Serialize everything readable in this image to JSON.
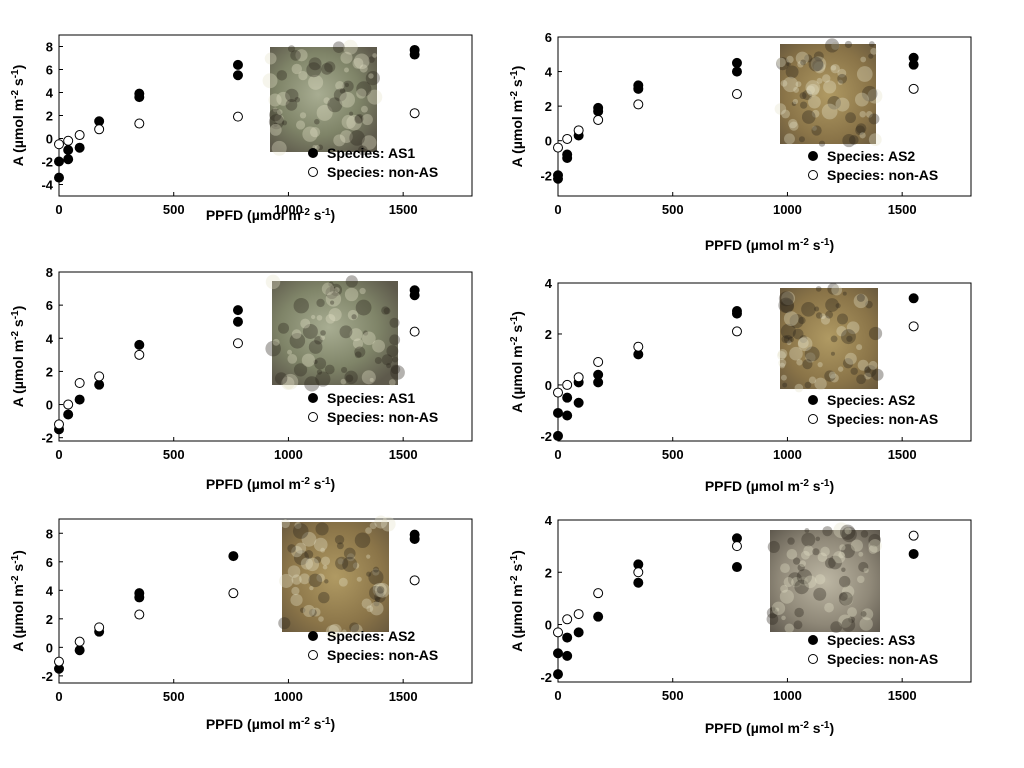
{
  "figure": {
    "xlabel": "PPFD (µmol m⁻² s⁻¹)",
    "ylabel": "A (µmol m⁻² s⁻¹)",
    "colors": {
      "filled": "#000000",
      "open_fill": "#ffffff",
      "open_stroke": "#000000"
    }
  },
  "chart_data": [
    {
      "type": "scatter",
      "xlabel": "PPFD (µmol m⁻² s⁻¹)",
      "ylabel": "A (µmol m⁻² s⁻¹)",
      "xlim": [
        0,
        1800
      ],
      "ylim": [
        -5,
        9
      ],
      "xticks": [
        0,
        500,
        1000,
        1500
      ],
      "yticks": [
        -4,
        -2,
        0,
        2,
        4,
        6,
        8
      ],
      "legend": "bottom-right",
      "image": "lichen-photo",
      "series": [
        {
          "name": "Species: AS1",
          "marker": "filled",
          "x": [
            0,
            0,
            40,
            40,
            90,
            175,
            350,
            350,
            780,
            780,
            1550,
            1550
          ],
          "y": [
            -3.4,
            -2.0,
            -1.8,
            -1.0,
            -0.8,
            1.5,
            3.6,
            3.9,
            5.5,
            6.4,
            7.3,
            7.7
          ]
        },
        {
          "name": "Species: non-AS",
          "marker": "open",
          "x": [
            0,
            40,
            90,
            175,
            350,
            780,
            1550
          ],
          "y": [
            -0.5,
            -0.2,
            0.3,
            0.8,
            1.3,
            1.9,
            2.2
          ]
        }
      ]
    },
    {
      "type": "scatter",
      "xlabel": "PPFD (µmol m⁻² s⁻¹)",
      "ylabel": "A (µmol m⁻² s⁻¹)",
      "xlim": [
        0,
        1800
      ],
      "ylim": [
        -3.2,
        6
      ],
      "xticks": [
        0,
        500,
        1000,
        1500
      ],
      "yticks": [
        -2,
        0,
        2,
        4,
        6
      ],
      "legend": "bottom-right",
      "image": "lichen-photo",
      "series": [
        {
          "name": "Species: AS2",
          "marker": "filled",
          "x": [
            0,
            0,
            40,
            40,
            90,
            175,
            175,
            350,
            350,
            780,
            780,
            1550,
            1550
          ],
          "y": [
            -2.2,
            -2.0,
            -1.0,
            -0.8,
            0.3,
            1.7,
            1.9,
            3.0,
            3.2,
            4.0,
            4.5,
            4.4,
            4.8
          ]
        },
        {
          "name": "Species: non-AS",
          "marker": "open",
          "x": [
            0,
            40,
            90,
            175,
            350,
            780,
            1550
          ],
          "y": [
            -0.4,
            0.1,
            0.6,
            1.2,
            2.1,
            2.7,
            3.0
          ]
        }
      ]
    },
    {
      "type": "scatter",
      "xlabel": "PPFD (µmol m⁻² s⁻¹)",
      "ylabel": "A (µmol m⁻² s⁻¹)",
      "xlim": [
        0,
        1800
      ],
      "ylim": [
        -2.2,
        8
      ],
      "xticks": [
        0,
        500,
        1000,
        1500
      ],
      "yticks": [
        -2,
        0,
        2,
        4,
        6,
        8
      ],
      "legend": "bottom-right",
      "image": "lichen-photo",
      "series": [
        {
          "name": "Species: AS1",
          "marker": "filled",
          "x": [
            0,
            40,
            90,
            175,
            350,
            780,
            780,
            1550,
            1550
          ],
          "y": [
            -1.5,
            -0.6,
            0.3,
            1.2,
            3.6,
            5.0,
            5.7,
            6.6,
            6.9
          ]
        },
        {
          "name": "Species: non-AS",
          "marker": "open",
          "x": [
            0,
            40,
            90,
            175,
            350,
            780,
            1550
          ],
          "y": [
            -1.2,
            0.0,
            1.3,
            1.7,
            3.0,
            3.7,
            4.4
          ]
        }
      ]
    },
    {
      "type": "scatter",
      "xlabel": "PPFD (µmol m⁻² s⁻¹)",
      "ylabel": "A (µmol m⁻² s⁻¹)",
      "xlim": [
        0,
        1800
      ],
      "ylim": [
        -2.2,
        4
      ],
      "xticks": [
        0,
        500,
        1000,
        1500
      ],
      "yticks": [
        -2,
        0,
        2,
        4
      ],
      "legend": "bottom-right",
      "image": "lichen-photo",
      "series": [
        {
          "name": "Species: AS2",
          "marker": "filled",
          "x": [
            0,
            0,
            40,
            40,
            90,
            90,
            175,
            175,
            350,
            780,
            780,
            1550
          ],
          "y": [
            -2.0,
            -1.1,
            -1.2,
            -0.5,
            -0.7,
            0.1,
            0.1,
            0.4,
            1.2,
            2.8,
            2.9,
            3.4
          ]
        },
        {
          "name": "Species: non-AS",
          "marker": "open",
          "x": [
            0,
            40,
            90,
            175,
            350,
            780,
            1550
          ],
          "y": [
            -0.3,
            0.0,
            0.3,
            0.9,
            1.5,
            2.1,
            2.3
          ]
        }
      ]
    },
    {
      "type": "scatter",
      "xlabel": "PPFD (µmol m⁻² s⁻¹)",
      "ylabel": "A (µmol m⁻² s⁻¹)",
      "xlim": [
        0,
        1800
      ],
      "ylim": [
        -2.5,
        9
      ],
      "xticks": [
        0,
        500,
        1000,
        1500
      ],
      "yticks": [
        -2,
        0,
        2,
        4,
        6,
        8
      ],
      "legend": "bottom-right",
      "image": "lichen-photo",
      "series": [
        {
          "name": "Species: AS2",
          "marker": "filled",
          "x": [
            0,
            90,
            175,
            350,
            350,
            760,
            1550,
            1550
          ],
          "y": [
            -1.5,
            -0.2,
            1.1,
            3.5,
            3.8,
            6.4,
            7.6,
            7.9
          ]
        },
        {
          "name": "Species: non-AS",
          "marker": "open",
          "x": [
            0,
            90,
            175,
            350,
            760,
            1550
          ],
          "y": [
            -1.0,
            0.4,
            1.4,
            2.3,
            3.8,
            4.7
          ]
        }
      ]
    },
    {
      "type": "scatter",
      "xlabel": "PPFD (µmol m⁻² s⁻¹)",
      "ylabel": "A (µmol m⁻² s⁻¹)",
      "xlim": [
        0,
        1800
      ],
      "ylim": [
        -2.2,
        4
      ],
      "xticks": [
        0,
        500,
        1000,
        1500
      ],
      "yticks": [
        -2,
        0,
        2,
        4
      ],
      "legend": "bottom-right",
      "image": "lichen-photo",
      "series": [
        {
          "name": "Species: AS3",
          "marker": "filled",
          "x": [
            0,
            0,
            40,
            40,
            90,
            175,
            350,
            350,
            780,
            780,
            1550
          ],
          "y": [
            -1.9,
            -1.1,
            -1.2,
            -0.5,
            -0.3,
            0.3,
            1.6,
            2.3,
            2.2,
            3.3,
            2.7
          ]
        },
        {
          "name": "Species: non-AS",
          "marker": "open",
          "x": [
            0,
            40,
            90,
            175,
            350,
            780,
            1550
          ],
          "y": [
            -0.3,
            0.2,
            0.4,
            1.2,
            2.0,
            3.0,
            3.4
          ]
        }
      ]
    }
  ]
}
